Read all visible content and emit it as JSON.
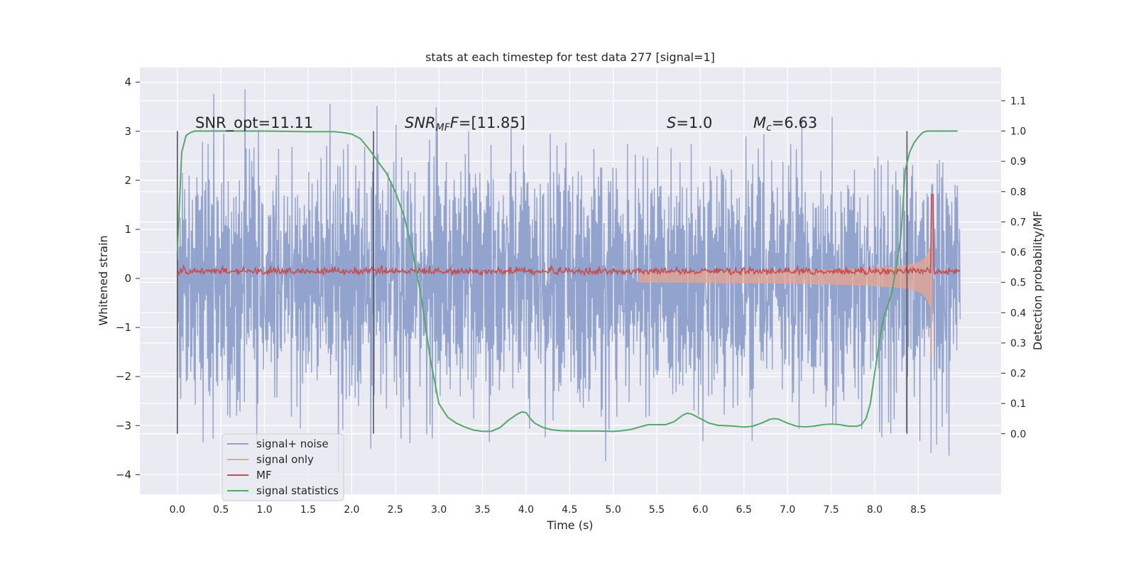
{
  "chart_data": {
    "type": "line",
    "title": "stats at each timestep for test data 277 [signal=1]",
    "xlabel": "Time (s)",
    "ylabel_left": "Whitened strain",
    "ylabel_right": "Detection probability/MF",
    "xlim": [
      -0.43,
      9.45
    ],
    "ylim_left": [
      -4.4,
      4.3
    ],
    "ylim_right": [
      -0.2,
      1.21
    ],
    "x_ticks": [
      0.0,
      0.5,
      1.0,
      1.5,
      2.0,
      2.5,
      3.0,
      3.5,
      4.0,
      4.5,
      5.0,
      5.5,
      6.0,
      6.5,
      7.0,
      7.5,
      8.0,
      8.5
    ],
    "x_tick_labels": [
      "0.0",
      "0.5",
      "1.0",
      "1.5",
      "2.0",
      "2.5",
      "3.0",
      "3.5",
      "4.0",
      "4.5",
      "5.0",
      "5.5",
      "6.0",
      "6.5",
      "7.0",
      "7.5",
      "8.0",
      "8.5"
    ],
    "y_left_ticks": [
      4,
      3,
      2,
      1,
      0,
      -1,
      -2,
      -3,
      -4
    ],
    "y_left_tick_labels": [
      "4",
      "3",
      "2",
      "1",
      "0",
      "−1",
      "−2",
      "−3",
      "−4"
    ],
    "y_right_ticks": [
      1.1,
      1.0,
      0.9,
      0.8,
      0.7,
      0.6,
      0.5,
      0.4,
      0.3,
      0.2,
      0.1,
      0.0
    ],
    "y_right_tick_labels": [
      "1.1",
      "1.0",
      "0.9",
      "0.8",
      "0.7",
      "0.6",
      "0.5",
      "0.4",
      "0.3",
      "0.2",
      "0.1",
      "0.0"
    ],
    "vertical_markers": [
      0.0,
      2.25,
      8.37
    ],
    "annotations": {
      "snr_opt": "SNR_opt=11.11",
      "snr_mf_sym": "SNR",
      "snr_mf_sub": "MF",
      "snr_mf_f": "F",
      "snr_mf_val": "=[11.85]",
      "s_sym": "S",
      "s_val": "=1.0",
      "mc_sym": "M",
      "mc_sub": "c",
      "mc_val": "=6.63"
    },
    "series": [
      {
        "name": "signal+ noise",
        "color": "#8da0cb",
        "axis": "left",
        "t_range": [
          0.0,
          8.98
        ],
        "amplitude_approx": 3.0
      },
      {
        "name": "signal only",
        "color": "#e8a590",
        "axis": "left",
        "chirp_peak_time": 8.65,
        "peak_amplitude": 1.0
      },
      {
        "name": "MF",
        "color": "#c44e52",
        "axis": "right",
        "baseline": 0.53,
        "peak": [
          8.66,
          0.79
        ]
      },
      {
        "name": "signal statistics",
        "color": "#55a868",
        "axis": "right",
        "x": [
          0.0,
          0.05,
          0.1,
          0.15,
          0.2,
          0.3,
          0.5,
          1.0,
          1.5,
          1.8,
          1.9,
          2.0,
          2.1,
          2.2,
          2.3,
          2.4,
          2.5,
          2.6,
          2.7,
          2.8,
          2.9,
          3.0,
          3.1,
          3.2,
          3.3,
          3.4,
          3.5,
          3.6,
          3.7,
          3.8,
          3.9,
          3.95,
          4.0,
          4.05,
          4.1,
          4.2,
          4.3,
          4.4,
          4.6,
          4.8,
          5.0,
          5.1,
          5.2,
          5.3,
          5.4,
          5.5,
          5.6,
          5.7,
          5.8,
          5.85,
          5.9,
          6.0,
          6.1,
          6.2,
          6.4,
          6.5,
          6.6,
          6.7,
          6.8,
          6.85,
          6.9,
          7.0,
          7.1,
          7.2,
          7.3,
          7.4,
          7.5,
          7.6,
          7.7,
          7.8,
          7.85,
          7.9,
          7.95,
          8.0,
          8.05,
          8.1,
          8.2,
          8.3,
          8.35,
          8.4,
          8.45,
          8.5,
          8.55,
          8.6,
          8.7,
          8.8,
          8.95
        ],
        "y": [
          0.6,
          0.93,
          0.985,
          0.995,
          1.0,
          1.0,
          1.0,
          1.0,
          0.998,
          0.998,
          0.995,
          0.99,
          0.975,
          0.94,
          0.9,
          0.86,
          0.8,
          0.72,
          0.6,
          0.45,
          0.25,
          0.1,
          0.055,
          0.035,
          0.022,
          0.012,
          0.008,
          0.008,
          0.02,
          0.045,
          0.065,
          0.072,
          0.07,
          0.05,
          0.035,
          0.02,
          0.013,
          0.01,
          0.009,
          0.009,
          0.008,
          0.01,
          0.014,
          0.022,
          0.03,
          0.03,
          0.03,
          0.04,
          0.062,
          0.068,
          0.065,
          0.05,
          0.035,
          0.028,
          0.025,
          0.022,
          0.025,
          0.035,
          0.048,
          0.05,
          0.048,
          0.035,
          0.025,
          0.023,
          0.025,
          0.03,
          0.032,
          0.03,
          0.025,
          0.025,
          0.03,
          0.05,
          0.1,
          0.2,
          0.3,
          0.38,
          0.47,
          0.65,
          0.87,
          0.93,
          0.96,
          0.98,
          0.995,
          1.0,
          1.0,
          1.0,
          1.0
        ]
      }
    ],
    "legend": {
      "placement": "lower-left",
      "labels": [
        "signal+ noise",
        "signal only",
        "MF",
        "signal statistics"
      ],
      "colors": [
        "#8da0cb",
        "#e8a590",
        "#c44e52",
        "#55a868"
      ]
    },
    "grid": true,
    "background_color": "#eaeaf2"
  }
}
